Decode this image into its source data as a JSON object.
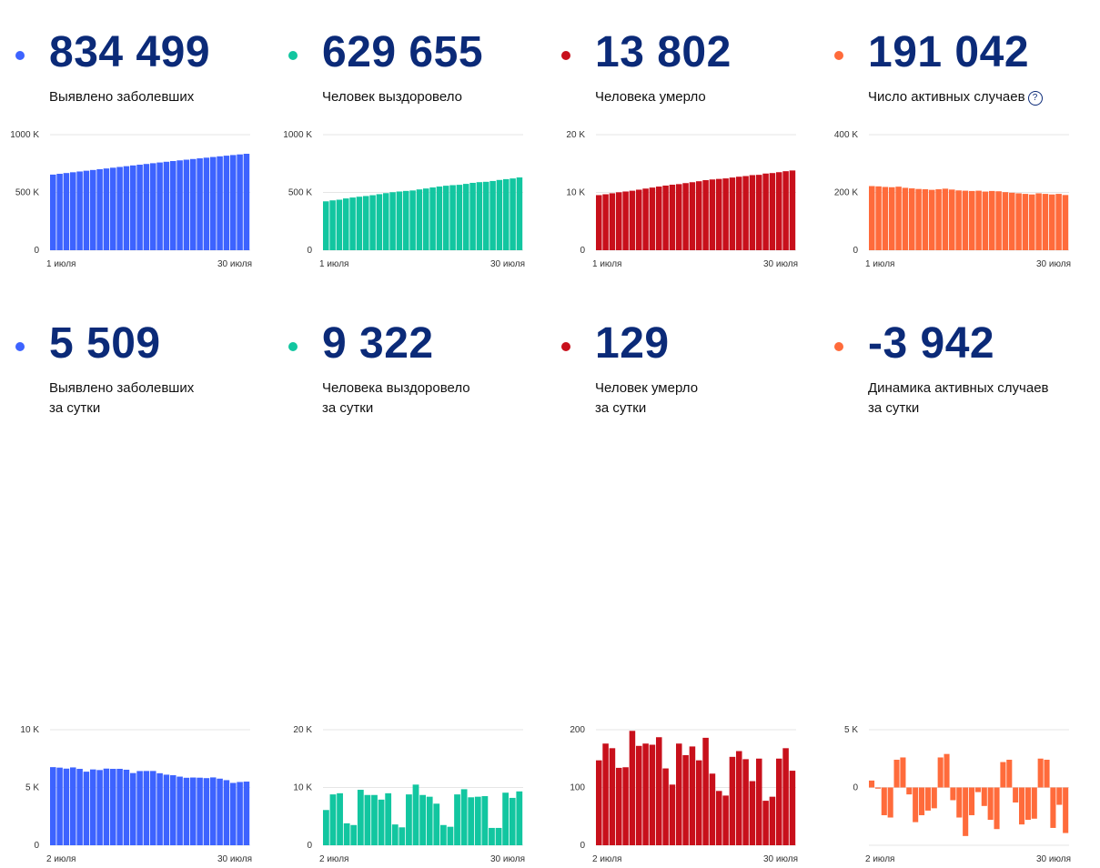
{
  "cards": [
    {
      "value": "834 499",
      "label": "Выявлено заболевших",
      "label2": "",
      "color": "#3d63ff",
      "chart_data": {
        "type": "bar",
        "xlabel_start": "1 июля",
        "xlabel_end": "30 июля",
        "yticks": [
          {
            "v": 0,
            "t": "0"
          },
          {
            "v": 500000,
            "t": "500 K"
          },
          {
            "v": 1000000,
            "t": "1000 K"
          }
        ],
        "ylim": [
          0,
          1000000
        ],
        "values": [
          654405,
          661165,
          667883,
          674515,
          681251,
          687862,
          694230,
          700792,
          707301,
          713936,
          720547,
          727162,
          733699,
          739947,
          746369,
          752797,
          759203,
          765437,
          771546,
          777486,
          783328,
          789190,
          795038,
          800849,
          806720,
          812485,
          818120,
          823515,
          828990,
          834499
        ]
      }
    },
    {
      "value": "629 655",
      "label": "Человек выздоровело",
      "label2": "",
      "color": "#12c6a0",
      "chart_data": {
        "type": "bar",
        "xlabel_start": "1 июля",
        "xlabel_end": "30 июля",
        "yticks": [
          {
            "v": 0,
            "t": "0"
          },
          {
            "v": 500000,
            "t": "500 K"
          },
          {
            "v": 1000000,
            "t": "1000 K"
          }
        ],
        "ylim": [
          0,
          1000000
        ],
        "values": [
          422931,
          431223,
          437000,
          448000,
          456000,
          463000,
          469000,
          476000,
          485000,
          494000,
          502000,
          508000,
          513000,
          517000,
          526000,
          534000,
          543000,
          551000,
          558000,
          563000,
          566000,
          574000,
          583000,
          589000,
          592000,
          599000,
          608000,
          615000,
          621000,
          629655
        ]
      }
    },
    {
      "value": "13 802",
      "label": "Человека умерло",
      "label2": "",
      "color": "#c8101b",
      "chart_data": {
        "type": "bar",
        "xlabel_start": "1 июля",
        "xlabel_end": "30 июля",
        "yticks": [
          {
            "v": 0,
            "t": "0"
          },
          {
            "v": 10000,
            "t": "10 K"
          },
          {
            "v": 20000,
            "t": "20 K"
          }
        ],
        "ylim": [
          0,
          20000
        ],
        "values": [
          9536,
          9683,
          9859,
          10027,
          10161,
          10296,
          10478,
          10667,
          10843,
          11017,
          11188,
          11335,
          11439,
          11614,
          11770,
          11937,
          12123,
          12245,
          12342,
          12427,
          12580,
          12724,
          12835,
          12998,
          13046,
          13269,
          13354,
          13504,
          13673,
          13802
        ]
      }
    },
    {
      "value": "191 042",
      "label": "Число активных случаев",
      "label2": "",
      "color": "#ff6b3b",
      "help": "?",
      "chart_data": {
        "type": "bar",
        "xlabel_start": "1 июля",
        "xlabel_end": "30 июля",
        "yticks": [
          {
            "v": 0,
            "t": "0"
          },
          {
            "v": 200000,
            "t": "200 K"
          },
          {
            "v": 400000,
            "t": "400 K"
          }
        ],
        "ylim": [
          0,
          400000
        ],
        "values": [
          222000,
          221000,
          219000,
          218000,
          220000,
          216000,
          214000,
          212000,
          211000,
          209000,
          211000,
          213000,
          210000,
          207000,
          206000,
          205000,
          206000,
          203000,
          205000,
          204000,
          201000,
          199000,
          197000,
          195000,
          193000,
          197000,
          195000,
          193000,
          195000,
          191042
        ]
      }
    },
    {
      "value": "5 509",
      "label": "Выявлено заболевших",
      "label2": "за сутки",
      "color": "#3d63ff",
      "chart_data": {
        "type": "bar",
        "xlabel_start": "2 июля",
        "xlabel_end": "30 июля",
        "yticks": [
          {
            "v": 0,
            "t": "0"
          },
          {
            "v": 5000,
            "t": "5 K"
          },
          {
            "v": 10000,
            "t": "10 K"
          }
        ],
        "ylim": [
          0,
          10000
        ],
        "values": [
          6760,
          6718,
          6632,
          6736,
          6611,
          6368,
          6562,
          6509,
          6635,
          6611,
          6615,
          6537,
          6248,
          6422,
          6428,
          6428,
          6234,
          6109,
          6060,
          5940,
          5842,
          5862,
          5848,
          5811,
          5871,
          5765,
          5635,
          5395,
          5475,
          5509
        ]
      }
    },
    {
      "value": "9 322",
      "label": "Человека выздоровело",
      "label2": "за сутки",
      "color": "#12c6a0",
      "chart_data": {
        "type": "bar",
        "xlabel_start": "2 июля",
        "xlabel_end": "30 июля",
        "yticks": [
          {
            "v": 0,
            "t": "0"
          },
          {
            "v": 10000,
            "t": "10 K"
          },
          {
            "v": 20000,
            "t": "20 K"
          }
        ],
        "ylim": [
          0,
          20000
        ],
        "values": [
          6100,
          8800,
          9000,
          3800,
          3500,
          9600,
          8700,
          8700,
          7900,
          9000,
          3600,
          3100,
          8800,
          10500,
          8700,
          8400,
          7200,
          3500,
          3200,
          8800,
          9700,
          8300,
          8400,
          8500,
          3000,
          3000,
          9100,
          8200,
          9322
        ]
      }
    },
    {
      "value": "129",
      "label": "Человек умерло",
      "label2": "за сутки",
      "color": "#c8101b",
      "chart_data": {
        "type": "bar",
        "xlabel_start": "2 июля",
        "xlabel_end": "30 июля",
        "yticks": [
          {
            "v": 0,
            "t": "0"
          },
          {
            "v": 100,
            "t": "100"
          },
          {
            "v": 200,
            "t": "200"
          }
        ],
        "ylim": [
          0,
          200
        ],
        "values": [
          147,
          176,
          168,
          134,
          135,
          198,
          172,
          176,
          174,
          187,
          133,
          105,
          176,
          156,
          171,
          147,
          186,
          124,
          94,
          86,
          153,
          163,
          149,
          111,
          150,
          77,
          84,
          150,
          168,
          129
        ]
      }
    },
    {
      "value": "-3 942",
      "label": "Динамика активных случаев",
      "label2": "за сутки",
      "color": "#ff6b3b",
      "chart_data": {
        "type": "bar",
        "xlabel_start": "2 июля",
        "xlabel_end": "30 июля",
        "yticks": [
          {
            "v": -5000,
            "t": ""
          },
          {
            "v": 0,
            "t": "0"
          },
          {
            "v": 5000,
            "t": "5 K"
          }
        ],
        "ylim": [
          -5000,
          5000
        ],
        "values": [
          600,
          -100,
          -2400,
          -2600,
          2400,
          2600,
          -600,
          -3000,
          -2400,
          -2000,
          -1800,
          2600,
          2900,
          -1100,
          -2600,
          -4200,
          -2400,
          -400,
          -1600,
          -2800,
          -3600,
          2200,
          2400,
          -1300,
          -3200,
          -2800,
          -2700,
          2500,
          2400,
          -3500,
          -1500,
          -3942
        ]
      }
    }
  ]
}
